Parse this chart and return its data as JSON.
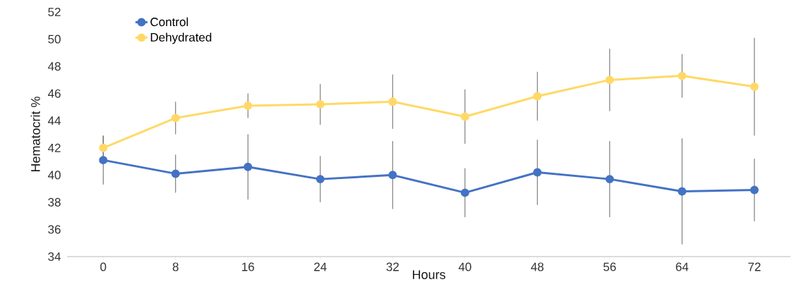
{
  "chart_data": {
    "type": "line",
    "xlabel": "Hours",
    "ylabel": "Hematocrit %",
    "categories": [
      "0",
      "8",
      "16",
      "24",
      "32",
      "40",
      "48",
      "56",
      "64",
      "72"
    ],
    "series": [
      {
        "name": "Control",
        "color": "#4472c4",
        "values": [
          41.1,
          40.1,
          40.6,
          39.7,
          40.0,
          38.7,
          40.2,
          39.7,
          38.8,
          38.9
        ],
        "errors": [
          1.8,
          1.4,
          2.4,
          1.7,
          2.5,
          1.8,
          2.4,
          2.8,
          3.9,
          2.3
        ]
      },
      {
        "name": "Dehydrated",
        "color": "#ffd966",
        "values": [
          42.0,
          44.2,
          45.1,
          45.2,
          45.4,
          44.3,
          45.8,
          47.0,
          47.3,
          46.5
        ],
        "errors": [
          0.9,
          1.2,
          0.9,
          1.5,
          2.0,
          2.0,
          1.8,
          2.3,
          1.6,
          3.6
        ]
      }
    ],
    "ylim": [
      34,
      52
    ],
    "yticks": [
      34,
      36,
      38,
      40,
      42,
      44,
      46,
      48,
      50,
      52
    ],
    "grid": false,
    "legend": "top left",
    "marker": "circle",
    "line_style": "solid"
  }
}
